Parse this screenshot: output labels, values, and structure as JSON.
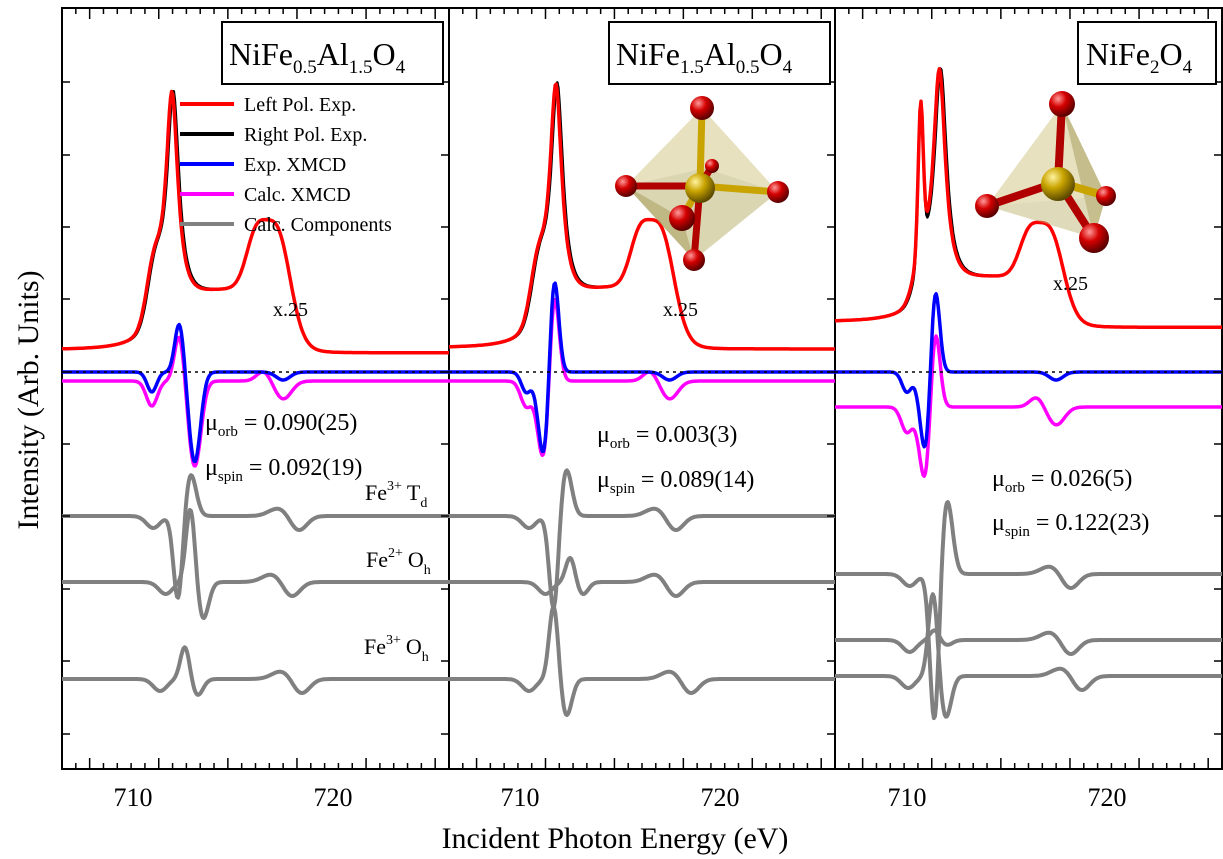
{
  "figure": {
    "ylabel": "Intensity (Arb. Units)",
    "xlabel": "Incident Photon Energy (eV)"
  },
  "legend": [
    {
      "label": "Left Pol. Exp.",
      "color": "#ff0000"
    },
    {
      "label": "Right Pol. Exp.",
      "color": "#000000"
    },
    {
      "label": "Exp. XMCD",
      "color": "#0000ff"
    },
    {
      "label": "Calc. XMCD",
      "color": "#ff00ff"
    },
    {
      "label": "Calc. Components",
      "color": "#808080"
    }
  ],
  "panels": [
    {
      "title_base": "NiFe",
      "title_sub1": "0.5",
      "title_mid": "Al",
      "title_sub2": "1.5",
      "title_end": "O",
      "title_sub3": "4",
      "scale_label": "x.25",
      "morb_label": "μ",
      "morb_sub": "orb",
      "morb_value": " = 0.090(25)",
      "mspin_label": "μ",
      "mspin_sub": "spin",
      "mspin_value": " = 0.092(19)",
      "comp_labels": {
        "td": {
          "ion": "Fe",
          "charge": "3+",
          "site": "T",
          "site_sub": "d"
        },
        "oh2": {
          "ion": "Fe",
          "charge": "2+",
          "site": "O",
          "site_sub": "h"
        },
        "oh3": {
          "ion": "Fe",
          "charge": "3+",
          "site": "O",
          "site_sub": "h"
        }
      }
    },
    {
      "title_base": "NiFe",
      "title_sub1": "1.5",
      "title_mid": "Al",
      "title_sub2": "0.5",
      "title_end": "O",
      "title_sub3": "4",
      "scale_label": "x.25",
      "morb_label": "μ",
      "morb_sub": "orb",
      "morb_value": " = 0.003(3)",
      "mspin_label": "μ",
      "mspin_sub": "spin",
      "mspin_value": " = 0.089(14)"
    },
    {
      "title_base": "NiFe",
      "title_sub1": "2",
      "title_end": "O",
      "title_sub3": "4",
      "scale_label": "x.25",
      "morb_label": "μ",
      "morb_sub": "orb",
      "morb_value": " = 0.026(5)",
      "mspin_label": "μ",
      "mspin_sub": "spin",
      "mspin_value": " = 0.122(23)"
    }
  ],
  "chart_data": {
    "type": "line",
    "x_ticks": [
      "710",
      "720"
    ],
    "xlim": [
      703,
      731
    ],
    "panels": [
      {
        "xas_peak_eV": 711.2,
        "xmcd_neg_eV": 712.6,
        "components": [
          "Fe3+ Td",
          "Fe2+ Oh",
          "Fe3+ Oh"
        ]
      },
      {
        "xas_peak_eV": 710.8,
        "xmcd_neg_eV": 709.8,
        "components": [
          "Fe3+ Td",
          "Fe2+ Oh",
          "Fe3+ Oh"
        ]
      },
      {
        "xas_peak_eV": 710.6,
        "xmcd_neg_eV": 709.8,
        "components": [
          "Fe3+ Td",
          "Fe2+ Oh",
          "Fe3+ Oh"
        ]
      }
    ]
  }
}
